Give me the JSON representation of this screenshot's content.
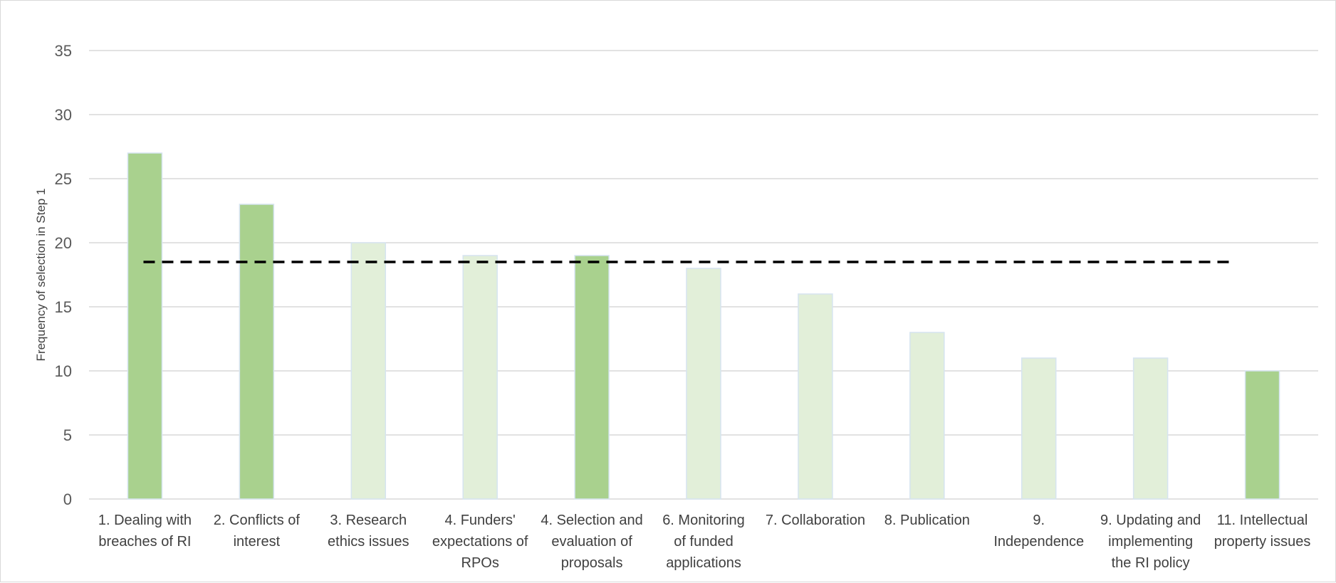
{
  "chart_data": {
    "type": "bar",
    "ylabel": "Frequency of selection in Step 1",
    "xlabel": "",
    "title": "",
    "ylim": [
      0,
      35
    ],
    "yticks": [
      0,
      5,
      10,
      15,
      20,
      25,
      30,
      35
    ],
    "grid": true,
    "categories": [
      "1. Dealing with breaches of RI",
      "2. Conflicts of interest",
      "3. Research ethics issues",
      "4. Funders' expectations of RPOs",
      "4. Selection and evaluation of proposals",
      "6. Monitoring of funded applications",
      "7. Collaboration",
      "8. Publication",
      "9. Independence",
      "9. Updating and implementing the RI policy",
      "11. Intellectual property issues"
    ],
    "category_label_lines": [
      [
        "1. Dealing with",
        "breaches of RI"
      ],
      [
        "2. Conflicts of",
        "interest"
      ],
      [
        "3. Research",
        "ethics issues"
      ],
      [
        "4. Funders'",
        "expectations of",
        "RPOs"
      ],
      [
        "4. Selection and",
        "evaluation of",
        "proposals"
      ],
      [
        "6. Monitoring",
        "of funded",
        "applications"
      ],
      [
        "7. Collaboration"
      ],
      [
        "8. Publication"
      ],
      [
        "9.",
        "Independence"
      ],
      [
        "9. Updating and",
        "implementing",
        "the RI policy"
      ],
      [
        "11. Intellectual",
        "property issues"
      ]
    ],
    "values": [
      27,
      23,
      20,
      19,
      19,
      18,
      16,
      13,
      11,
      11,
      10
    ],
    "highlighted": [
      true,
      true,
      false,
      false,
      true,
      false,
      false,
      false,
      false,
      false,
      true
    ],
    "reference_line": {
      "value": 18.5,
      "style": "dashed",
      "color": "#000000"
    },
    "colors": {
      "highlight": "#a9d18e",
      "normal": "#e2efd9",
      "bar_border": "#d6e4f0",
      "grid": "#d9d9d9"
    }
  }
}
